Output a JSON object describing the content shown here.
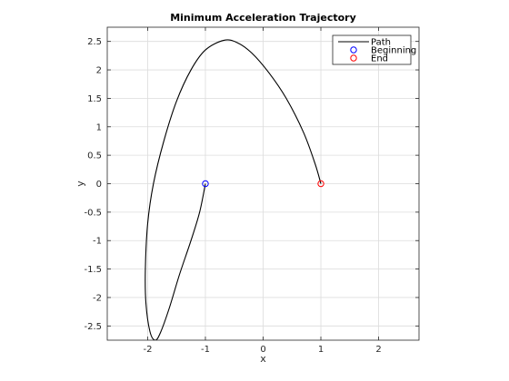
{
  "chart_data": {
    "type": "line",
    "title": "Minimum Acceleration Trajectory",
    "xlabel": "x",
    "ylabel": "y",
    "xlim": [
      -2.7,
      2.7
    ],
    "ylim": [
      -2.75,
      2.75
    ],
    "grid": true,
    "legend_position": "top-right",
    "x_ticks": [
      -2,
      -1,
      0,
      1,
      2
    ],
    "x_tick_labels": [
      "-2",
      "-1",
      "0",
      "1",
      "2"
    ],
    "y_ticks": [
      -2.5,
      -2,
      -1.5,
      -1,
      -0.5,
      0,
      0.5,
      1,
      1.5,
      2,
      2.5
    ],
    "y_tick_labels": [
      "-2.5",
      "-2",
      "-1.5",
      "-1",
      "-0.5",
      "0",
      "0.5",
      "1",
      "1.5",
      "2",
      "2.5"
    ],
    "series": [
      {
        "name": "Path",
        "style": "line",
        "color": "#000000",
        "points": [
          [
            -1.0,
            0.0
          ],
          [
            -1.1,
            -0.5
          ],
          [
            -1.25,
            -1.0
          ],
          [
            -1.45,
            -1.6
          ],
          [
            -1.63,
            -2.2
          ],
          [
            -1.78,
            -2.62
          ],
          [
            -1.87,
            -2.75
          ],
          [
            -1.96,
            -2.6
          ],
          [
            -2.03,
            -2.1
          ],
          [
            -2.04,
            -1.5
          ],
          [
            -2.0,
            -0.7
          ],
          [
            -1.9,
            0.0
          ],
          [
            -1.72,
            0.75
          ],
          [
            -1.5,
            1.45
          ],
          [
            -1.25,
            2.0
          ],
          [
            -1.0,
            2.35
          ],
          [
            -0.68,
            2.52
          ],
          [
            -0.45,
            2.48
          ],
          [
            -0.2,
            2.3
          ],
          [
            0.1,
            1.95
          ],
          [
            0.4,
            1.5
          ],
          [
            0.7,
            0.9
          ],
          [
            0.9,
            0.35
          ],
          [
            1.0,
            0.0
          ]
        ]
      },
      {
        "name": "Beginning",
        "style": "marker",
        "color": "#0000ff",
        "points": [
          [
            -1.0,
            0.0
          ]
        ]
      },
      {
        "name": "End",
        "style": "marker",
        "color": "#ff0000",
        "points": [
          [
            1.0,
            0.0
          ]
        ]
      }
    ]
  }
}
